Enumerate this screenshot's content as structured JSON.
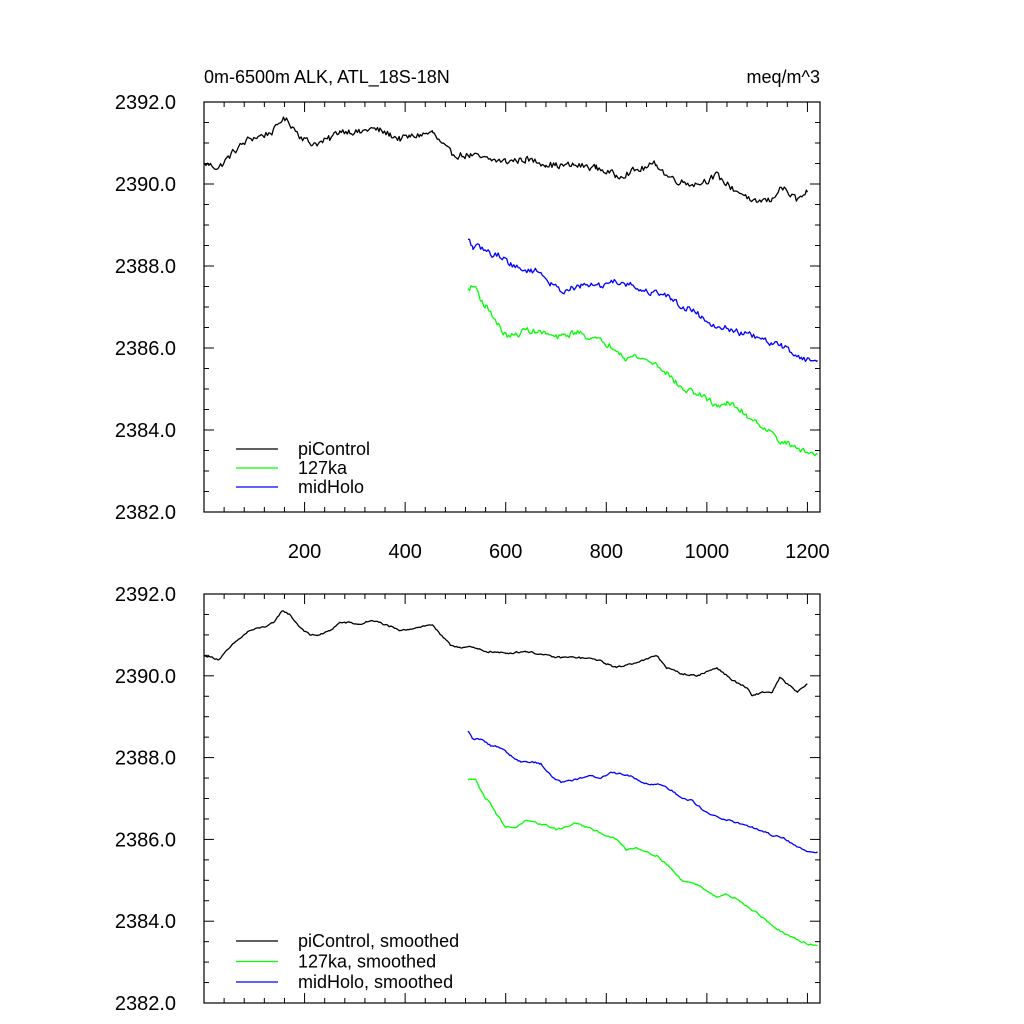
{
  "chart_data": [
    {
      "type": "line",
      "title": "0m-6500m ALK, ATL_18S-18N",
      "units": "meq/m^3",
      "xlim": [
        0,
        1225
      ],
      "ylim": [
        2382.0,
        2392.0
      ],
      "xticks": [
        200,
        400,
        600,
        800,
        1000,
        1200
      ],
      "yticks": [
        2382.0,
        2384.0,
        2386.0,
        2388.0,
        2390.0,
        2392.0
      ],
      "xlabel": "",
      "ylabel": "",
      "legend_position": "bottom-left",
      "series": [
        {
          "name": "piControl",
          "color": "#000000",
          "noise": 0.08,
          "x": [
            1,
            30,
            60,
            90,
            120,
            140,
            155,
            170,
            190,
            210,
            230,
            250,
            270,
            290,
            310,
            330,
            350,
            370,
            390,
            410,
            430,
            455,
            470,
            490,
            510,
            530,
            560,
            600,
            640,
            680,
            700,
            740,
            780,
            800,
            820,
            850,
            880,
            900,
            920,
            950,
            980,
            1000,
            1020,
            1050,
            1080,
            1090,
            1110,
            1130,
            1145,
            1160,
            1180,
            1200
          ],
          "y": [
            2390.5,
            2390.4,
            2390.8,
            2391.1,
            2391.2,
            2391.3,
            2391.6,
            2391.5,
            2391.2,
            2391.0,
            2391.0,
            2391.1,
            2391.3,
            2391.3,
            2391.25,
            2391.35,
            2391.3,
            2391.2,
            2391.1,
            2391.15,
            2391.2,
            2391.25,
            2391.0,
            2390.75,
            2390.7,
            2390.7,
            2390.6,
            2390.55,
            2390.6,
            2390.5,
            2390.45,
            2390.45,
            2390.4,
            2390.3,
            2390.2,
            2390.3,
            2390.4,
            2390.5,
            2390.2,
            2390.05,
            2390.0,
            2390.1,
            2390.2,
            2389.9,
            2389.7,
            2389.5,
            2389.6,
            2389.6,
            2389.95,
            2389.8,
            2389.6,
            2389.8
          ]
        },
        {
          "name": "127ka",
          "color": "#00ff00",
          "noise": 0.07,
          "x": [
            525,
            540,
            550,
            560,
            570,
            580,
            600,
            620,
            640,
            660,
            680,
            700,
            720,
            740,
            760,
            780,
            800,
            820,
            840,
            860,
            880,
            900,
            920,
            950,
            980,
            1000,
            1020,
            1040,
            1060,
            1080,
            1100,
            1120,
            1140,
            1160,
            1180,
            1200,
            1220
          ],
          "y": [
            2387.45,
            2387.5,
            2387.2,
            2387.0,
            2386.9,
            2386.65,
            2386.3,
            2386.3,
            2386.45,
            2386.4,
            2386.35,
            2386.25,
            2386.3,
            2386.4,
            2386.3,
            2386.2,
            2386.1,
            2386.0,
            2385.75,
            2385.8,
            2385.7,
            2385.6,
            2385.4,
            2385.0,
            2384.9,
            2384.75,
            2384.6,
            2384.65,
            2384.55,
            2384.35,
            2384.2,
            2384.0,
            2383.8,
            2383.65,
            2383.55,
            2383.45,
            2383.4
          ]
        },
        {
          "name": "midHolo",
          "color": "#0000ff",
          "noise": 0.07,
          "x": [
            525,
            535,
            550,
            570,
            590,
            610,
            630,
            650,
            670,
            690,
            710,
            730,
            750,
            770,
            790,
            810,
            830,
            850,
            870,
            890,
            910,
            930,
            950,
            970,
            990,
            1010,
            1030,
            1050,
            1070,
            1090,
            1110,
            1130,
            1150,
            1170,
            1190,
            1200,
            1220
          ],
          "y": [
            2388.65,
            2388.45,
            2388.45,
            2388.3,
            2388.25,
            2388.05,
            2387.9,
            2387.9,
            2387.85,
            2387.55,
            2387.4,
            2387.45,
            2387.5,
            2387.55,
            2387.5,
            2387.65,
            2387.6,
            2387.55,
            2387.4,
            2387.35,
            2387.35,
            2387.2,
            2387.0,
            2386.95,
            2386.75,
            2386.6,
            2386.5,
            2386.45,
            2386.35,
            2386.3,
            2386.2,
            2386.1,
            2386.05,
            2385.9,
            2385.75,
            2385.7,
            2385.7
          ]
        }
      ]
    },
    {
      "type": "line",
      "title": "",
      "units": "",
      "xlim": [
        0,
        1225
      ],
      "ylim": [
        2382.0,
        2392.0
      ],
      "yticks": [
        2382.0,
        2384.0,
        2386.0,
        2388.0,
        2390.0,
        2392.0
      ],
      "xlabel": "",
      "ylabel": "",
      "legend_position": "bottom-left",
      "series": [
        {
          "name": "piControl, smoothed",
          "color": "#000000",
          "noise": 0.02,
          "x": [
            1,
            30,
            60,
            90,
            120,
            140,
            155,
            170,
            190,
            210,
            230,
            250,
            270,
            290,
            310,
            330,
            350,
            370,
            390,
            410,
            430,
            455,
            470,
            490,
            510,
            530,
            560,
            600,
            640,
            680,
            700,
            740,
            780,
            800,
            820,
            850,
            880,
            900,
            920,
            950,
            980,
            1000,
            1020,
            1050,
            1080,
            1090,
            1110,
            1130,
            1145,
            1160,
            1180,
            1200
          ],
          "y": [
            2390.5,
            2390.4,
            2390.8,
            2391.1,
            2391.2,
            2391.3,
            2391.6,
            2391.5,
            2391.2,
            2391.0,
            2391.0,
            2391.1,
            2391.3,
            2391.3,
            2391.25,
            2391.35,
            2391.3,
            2391.2,
            2391.1,
            2391.15,
            2391.2,
            2391.25,
            2391.0,
            2390.75,
            2390.7,
            2390.7,
            2390.6,
            2390.55,
            2390.6,
            2390.5,
            2390.45,
            2390.45,
            2390.4,
            2390.3,
            2390.2,
            2390.3,
            2390.4,
            2390.5,
            2390.2,
            2390.05,
            2390.0,
            2390.1,
            2390.2,
            2389.9,
            2389.7,
            2389.5,
            2389.6,
            2389.6,
            2389.95,
            2389.8,
            2389.6,
            2389.8
          ]
        },
        {
          "name": "127ka, smoothed",
          "color": "#00ff00",
          "noise": 0.02,
          "x": [
            525,
            540,
            550,
            560,
            570,
            580,
            600,
            620,
            640,
            660,
            680,
            700,
            720,
            740,
            760,
            780,
            800,
            820,
            840,
            860,
            880,
            900,
            920,
            950,
            980,
            1000,
            1020,
            1040,
            1060,
            1080,
            1100,
            1120,
            1140,
            1160,
            1180,
            1200,
            1220
          ],
          "y": [
            2387.45,
            2387.5,
            2387.2,
            2387.0,
            2386.9,
            2386.65,
            2386.3,
            2386.3,
            2386.45,
            2386.4,
            2386.35,
            2386.25,
            2386.3,
            2386.4,
            2386.3,
            2386.2,
            2386.1,
            2386.0,
            2385.75,
            2385.8,
            2385.7,
            2385.6,
            2385.4,
            2385.0,
            2384.9,
            2384.75,
            2384.6,
            2384.65,
            2384.55,
            2384.35,
            2384.2,
            2384.0,
            2383.8,
            2383.65,
            2383.55,
            2383.45,
            2383.4
          ]
        },
        {
          "name": "midHolo, smoothed",
          "color": "#0000ff",
          "noise": 0.02,
          "x": [
            525,
            535,
            550,
            570,
            590,
            610,
            630,
            650,
            670,
            690,
            710,
            730,
            750,
            770,
            790,
            810,
            830,
            850,
            870,
            890,
            910,
            930,
            950,
            970,
            990,
            1010,
            1030,
            1050,
            1070,
            1090,
            1110,
            1130,
            1150,
            1170,
            1190,
            1200,
            1220
          ],
          "y": [
            2388.65,
            2388.45,
            2388.45,
            2388.3,
            2388.25,
            2388.05,
            2387.9,
            2387.9,
            2387.85,
            2387.55,
            2387.4,
            2387.45,
            2387.5,
            2387.55,
            2387.5,
            2387.65,
            2387.6,
            2387.55,
            2387.4,
            2387.35,
            2387.35,
            2387.2,
            2387.0,
            2386.95,
            2386.75,
            2386.6,
            2386.5,
            2386.45,
            2386.35,
            2386.3,
            2386.2,
            2386.1,
            2386.05,
            2385.9,
            2385.75,
            2385.7,
            2385.7
          ]
        }
      ]
    }
  ]
}
